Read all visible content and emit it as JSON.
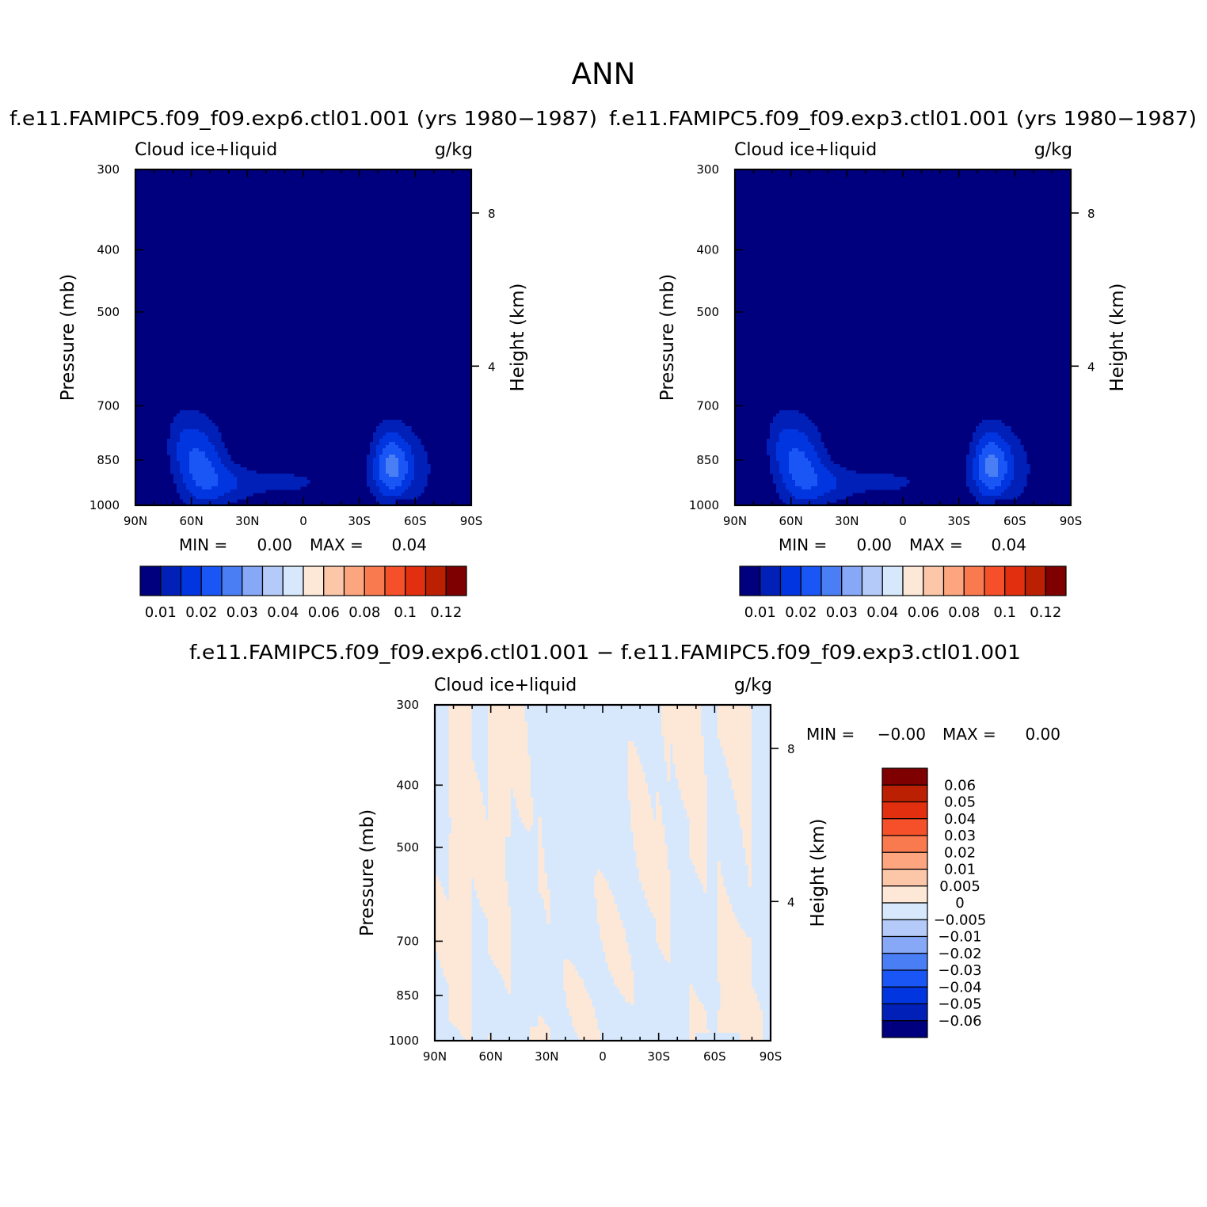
{
  "figure": {
    "title": "ANN"
  },
  "chart_data": [
    {
      "type": "heatmap",
      "title": "f.e11.FAMIPC5.f09_f09.exp6.ctl01.001 (yrs 1980-1987)",
      "subtitle_left": "Cloud ice+liquid",
      "subtitle_right": "g/kg",
      "ylabel": "Pressure (mb)",
      "ylabel_right": "Height (km)",
      "x_ticks": [
        "90N",
        "60N",
        "30N",
        "0",
        "30S",
        "60S",
        "90S"
      ],
      "y_ticks": [
        "300",
        "400",
        "500",
        "700",
        "850",
        "1000"
      ],
      "y_right_ticks": [
        "8",
        "4"
      ],
      "stats": {
        "min_label": "MIN =",
        "min": "0.00",
        "max_label": "MAX =",
        "max": "0.04"
      },
      "colorbar": {
        "orientation": "horizontal",
        "labels": [
          "0.01",
          "0.02",
          "0.03",
          "0.04",
          "0.06",
          "0.08",
          "0.1",
          "0.12"
        ]
      },
      "peaks_g_per_kg": [
        {
          "lat_deg": 55,
          "pressure_mb": 870,
          "value": 0.03
        },
        {
          "lat_deg": -47,
          "pressure_mb": 870,
          "value": 0.04
        }
      ]
    },
    {
      "type": "heatmap",
      "title": "f.e11.FAMIPC5.f09_f09.exp3.ctl01.001 (yrs 1980-1987)",
      "subtitle_left": "Cloud ice+liquid",
      "subtitle_right": "g/kg",
      "ylabel": "Pressure (mb)",
      "ylabel_right": "Height (km)",
      "x_ticks": [
        "90N",
        "60N",
        "30N",
        "0",
        "30S",
        "60S",
        "90S"
      ],
      "y_ticks": [
        "300",
        "400",
        "500",
        "700",
        "850",
        "1000"
      ],
      "y_right_ticks": [
        "8",
        "4"
      ],
      "stats": {
        "min_label": "MIN =",
        "min": "0.00",
        "max_label": "MAX =",
        "max": "0.04"
      },
      "colorbar": {
        "orientation": "horizontal",
        "labels": [
          "0.01",
          "0.02",
          "0.03",
          "0.04",
          "0.06",
          "0.08",
          "0.1",
          "0.12"
        ]
      },
      "peaks_g_per_kg": [
        {
          "lat_deg": 55,
          "pressure_mb": 870,
          "value": 0.03
        },
        {
          "lat_deg": -47,
          "pressure_mb": 870,
          "value": 0.04
        }
      ]
    },
    {
      "type": "heatmap",
      "title": "f.e11.FAMIPC5.f09_f09.exp6.ctl01.001 - f.e11.FAMIPC5.f09_f09.exp3.ctl01.001",
      "subtitle_left": "Cloud ice+liquid",
      "subtitle_right": "g/kg",
      "ylabel": "Pressure (mb)",
      "ylabel_right": "Height (km)",
      "x_ticks": [
        "90N",
        "60N",
        "30N",
        "0",
        "30S",
        "60S",
        "90S"
      ],
      "y_ticks": [
        "300",
        "400",
        "500",
        "700",
        "850",
        "1000"
      ],
      "y_right_ticks": [
        "8",
        "4"
      ],
      "stats": {
        "min_label": "MIN =",
        "min": "-0.00",
        "max_label": "MAX =",
        "max": "0.00"
      },
      "colorbar": {
        "orientation": "vertical",
        "labels": [
          "0.06",
          "0.05",
          "0.04",
          "0.03",
          "0.02",
          "0.01",
          "0.005",
          "0",
          "-0.005",
          "-0.01",
          "-0.02",
          "-0.03",
          "-0.04",
          "-0.05",
          "-0.06"
        ]
      }
    }
  ],
  "colors": {
    "control_palette": [
      "#00007f",
      "#0020b8",
      "#0035e0",
      "#1a55f5",
      "#4a7ef5",
      "#86a8f7",
      "#b4cbfa",
      "#d7e8fd",
      "#fde8d8",
      "#fcc6a9",
      "#fca57f",
      "#fa7a50",
      "#f5502a",
      "#e12f10",
      "#bb2003",
      "#7f0000"
    ],
    "diff_palette": [
      "#7f0000",
      "#bb2003",
      "#e12f10",
      "#f5502a",
      "#fa7a50",
      "#fca57f",
      "#fcc6a9",
      "#fde8d8",
      "#d7e8fd",
      "#b4cbfa",
      "#86a8f7",
      "#4a7ef5",
      "#1a55f5",
      "#0035e0",
      "#0020b8",
      "#00007f"
    ],
    "diff_positive": "#fde8d8",
    "diff_negative": "#d7e8fd"
  }
}
